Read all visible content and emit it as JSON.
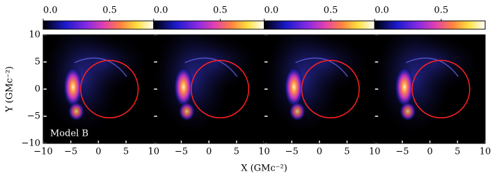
{
  "chart_data": [
    {
      "type": "image",
      "annotation": "Model B",
      "y_label": "Y (GMc⁻²)",
      "x_label": "X (GMc⁻²)",
      "xlim": [
        -10,
        10
      ],
      "ylim": [
        -10,
        10
      ],
      "xticks": [
        {
          "value": -10,
          "label": "−10"
        },
        {
          "value": -5,
          "label": "−5"
        },
        0,
        5,
        10
      ],
      "yticks": [
        {
          "value": -10,
          "label": "−10"
        },
        {
          "value": -5,
          "label": "−5"
        },
        0,
        5,
        10
      ],
      "clim": [
        0,
        0.83
      ],
      "cticks": [
        {
          "value": 0,
          "label": "0.0"
        },
        0.5
      ],
      "circle": {
        "center": [
          2,
          0
        ],
        "radius": 5.2,
        "color": "#ff2020"
      }
    },
    {
      "type": "image",
      "xlim": [
        -10,
        10
      ],
      "ylim": [
        -10,
        10
      ],
      "xticks": [
        {
          "value": -5,
          "label": "−5"
        },
        0,
        5,
        10
      ],
      "clim": [
        0,
        0.83
      ],
      "cticks": [
        {
          "value": 0,
          "label": "0.0"
        },
        0.5
      ],
      "circle": {
        "center": [
          2,
          0
        ],
        "radius": 5.2,
        "color": "#ff2020"
      }
    },
    {
      "type": "image",
      "xlim": [
        -10,
        10
      ],
      "ylim": [
        -10,
        10
      ],
      "xticks": [
        {
          "value": -5,
          "label": "−5"
        },
        0,
        5,
        10
      ],
      "clim": [
        0,
        0.83
      ],
      "cticks": [
        {
          "value": 0,
          "label": "0.0"
        },
        0.5
      ],
      "circle": {
        "center": [
          2,
          0
        ],
        "radius": 5.2,
        "color": "#ff2020"
      }
    },
    {
      "type": "image",
      "xlim": [
        -10,
        10
      ],
      "ylim": [
        -10,
        10
      ],
      "xticks": [
        {
          "value": -5,
          "label": "−5"
        },
        0,
        5,
        10
      ],
      "clim": [
        0,
        0.83
      ],
      "cticks": [
        {
          "value": 0,
          "label": "0.0"
        },
        0.5
      ],
      "circle": {
        "center": [
          2,
          0
        ],
        "radius": 5.2,
        "color": "#ff2020"
      }
    }
  ]
}
